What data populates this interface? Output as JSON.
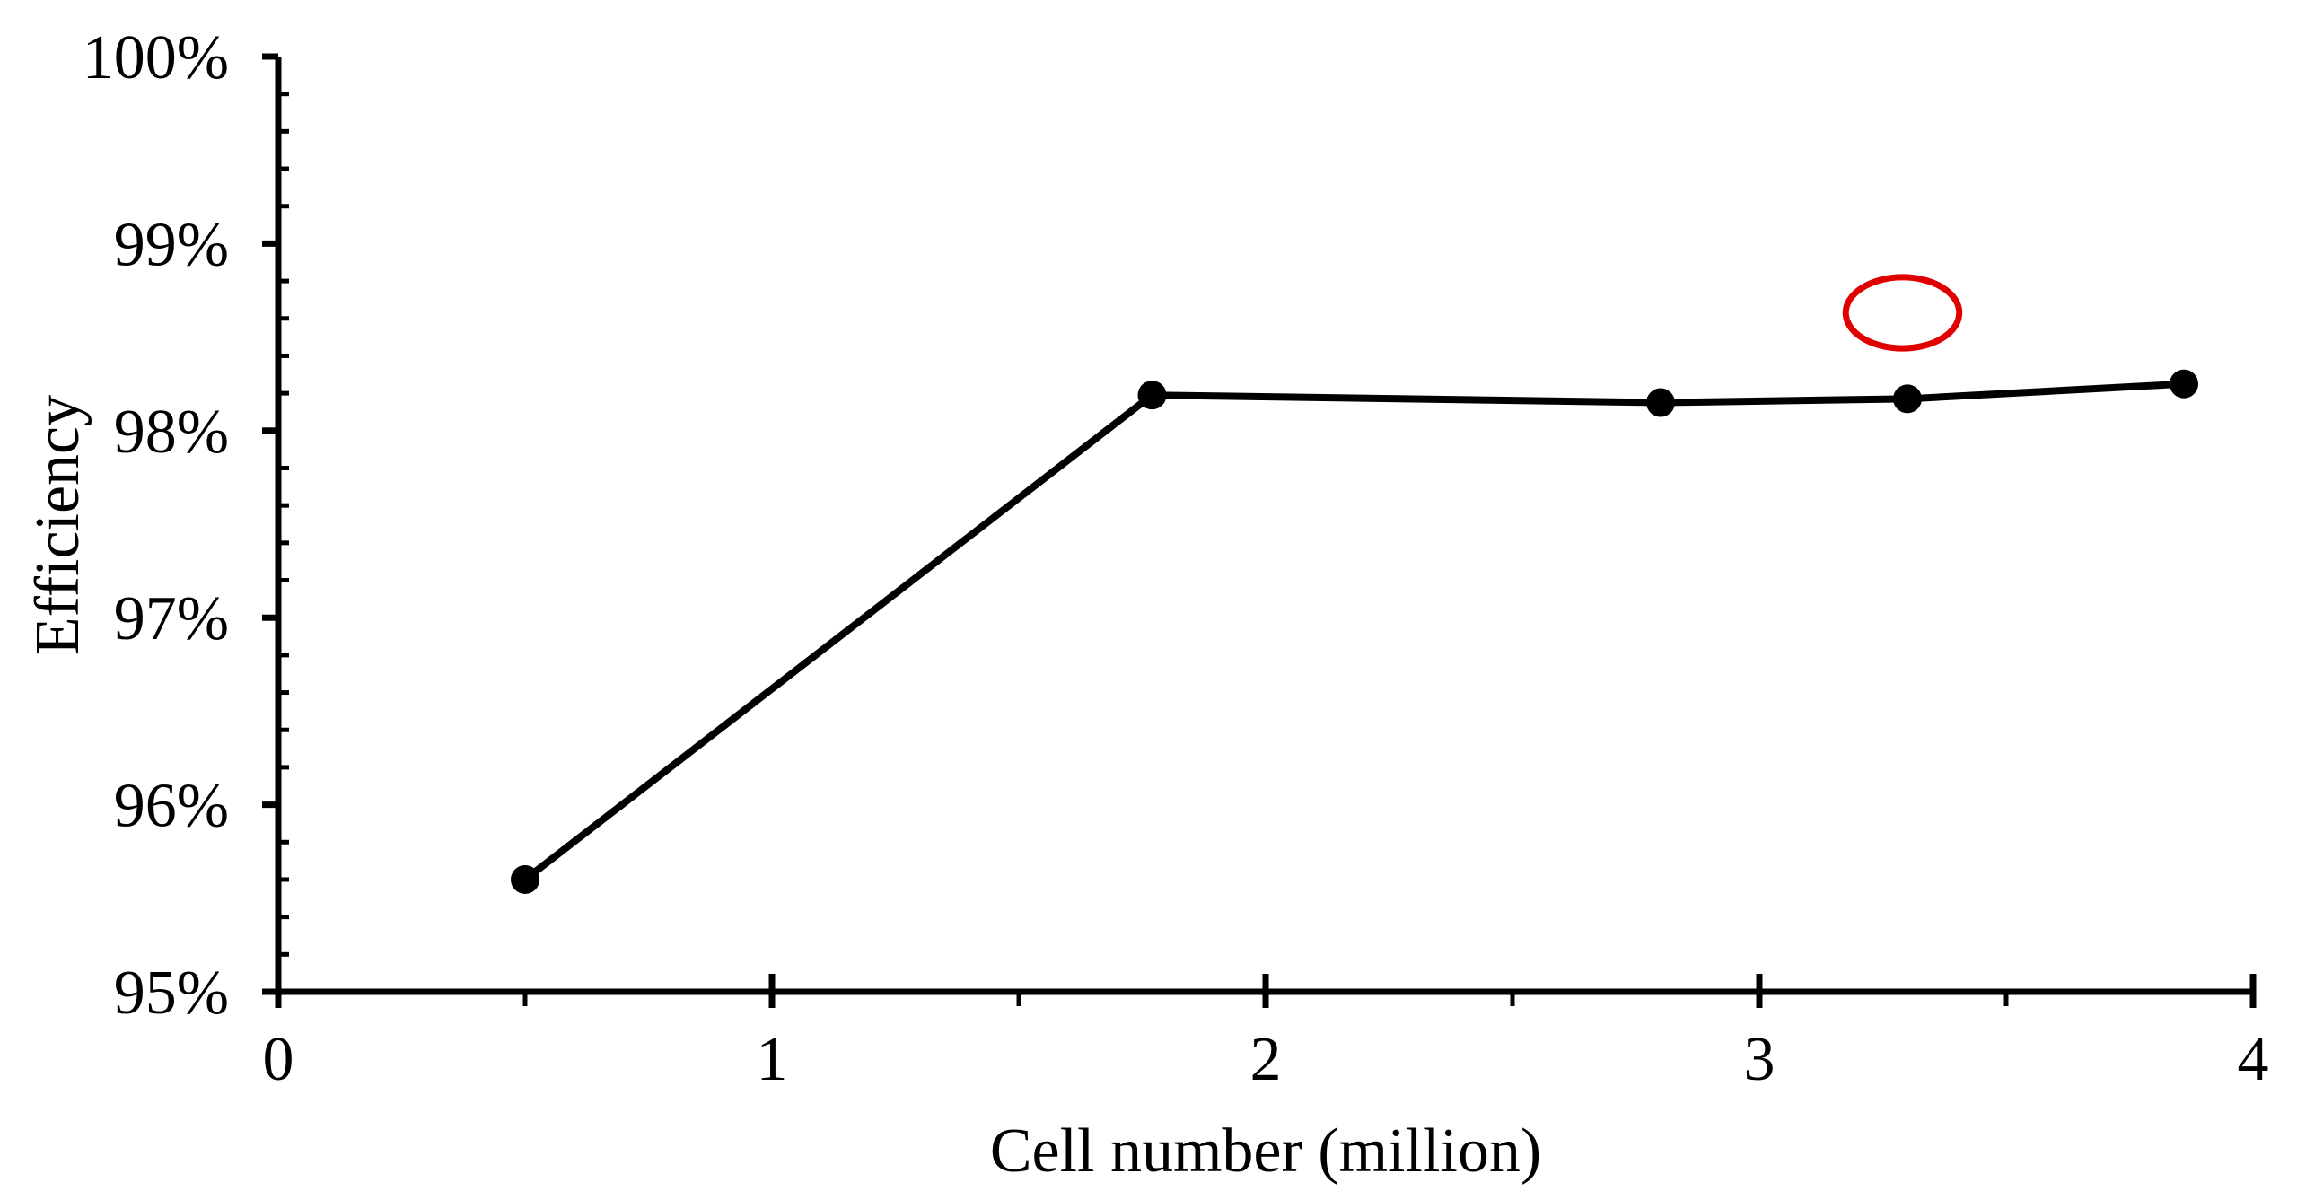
{
  "chart_data": {
    "type": "line",
    "xlabel": "Cell number (million)",
    "ylabel": "Efficiency",
    "xlim": [
      0,
      4
    ],
    "ylim": [
      0.95,
      1.0
    ],
    "x_ticks": [
      0,
      1,
      2,
      3,
      4
    ],
    "x_tick_labels": [
      "0",
      "1",
      "2",
      "3",
      "4"
    ],
    "x_minor_step": 0.5,
    "y_ticks": [
      0.95,
      0.96,
      0.97,
      0.98,
      0.99,
      1.0
    ],
    "y_tick_labels": [
      "95%",
      "96%",
      "97%",
      "98%",
      "99%",
      "100%"
    ],
    "y_minor_step": 0.002,
    "grid": false,
    "legend": "none",
    "series": [
      {
        "x": [
          0.5,
          1.77,
          2.8,
          3.3,
          3.86
        ],
        "y": [
          0.956,
          0.9819,
          0.9815,
          0.9817,
          0.9825
        ],
        "color": "#000000",
        "marker": "circle"
      }
    ],
    "annotations": [
      {
        "type": "ellipse",
        "x": 3.29,
        "y": 0.9863,
        "rx": 0.115,
        "ry": 0.0019,
        "color": "#e00000"
      }
    ]
  }
}
